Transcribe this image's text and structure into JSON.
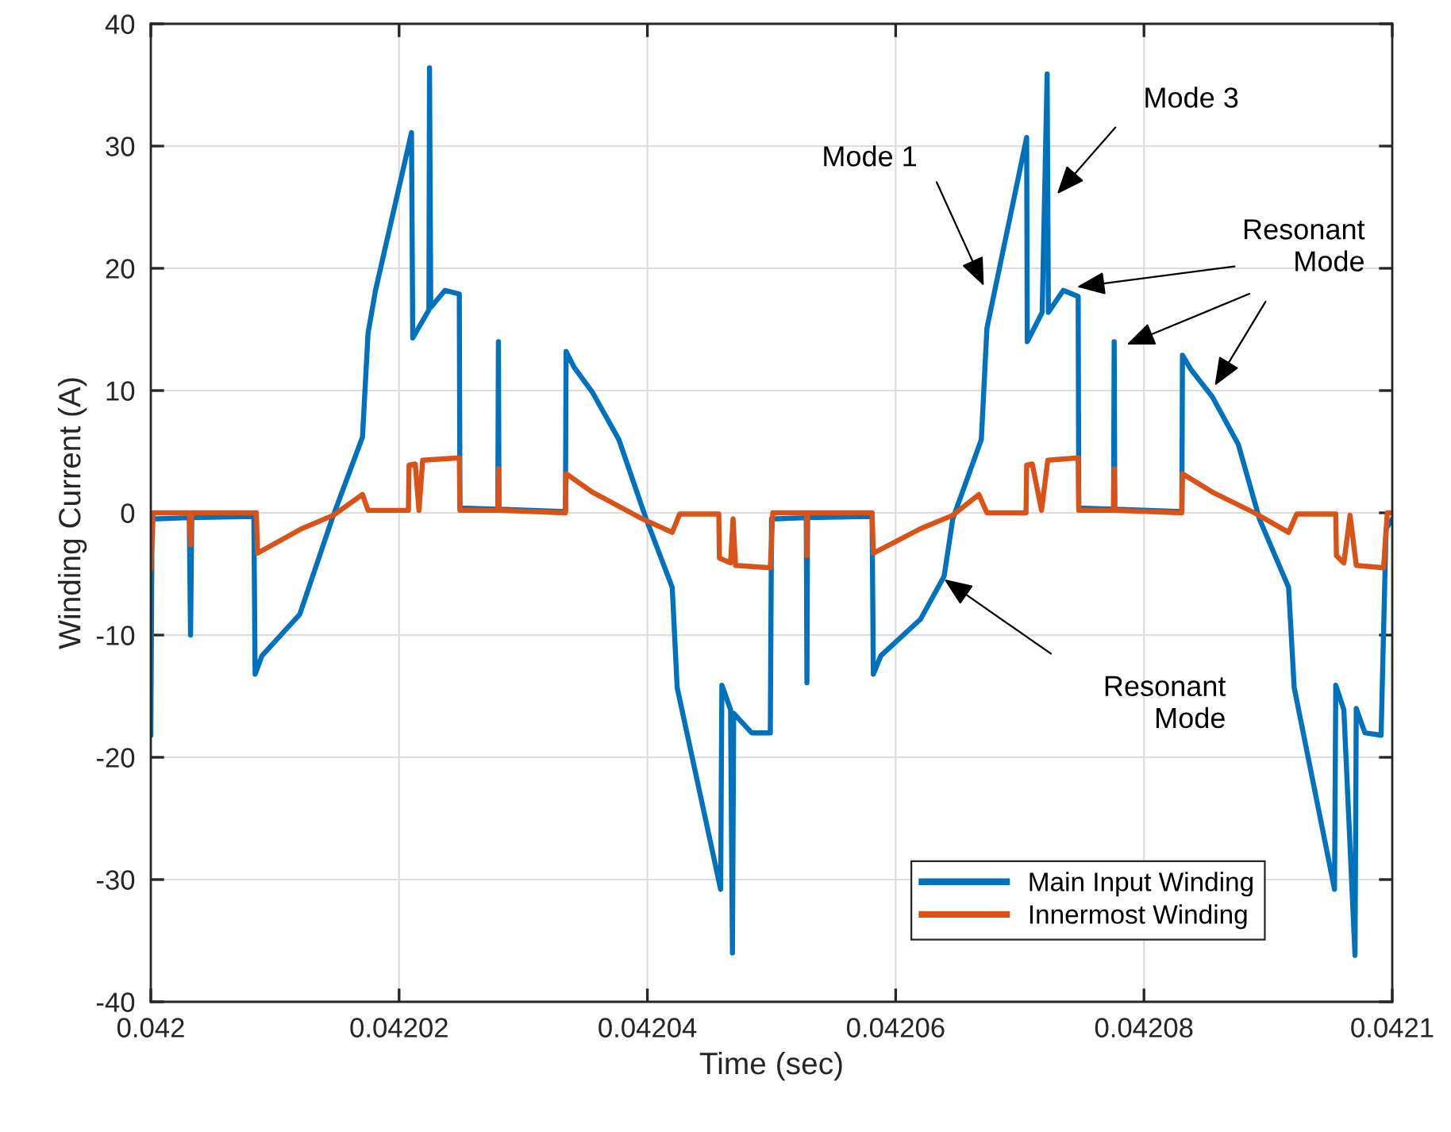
{
  "chart_data": {
    "type": "line",
    "xlabel": "Time (sec)",
    "ylabel": "Winding Current (A)",
    "xlim": [
      0.042,
      0.0421
    ],
    "xticks": [
      0.042,
      0.04202,
      0.04204,
      0.04206,
      0.04208,
      0.0421
    ],
    "ylim": [
      -40,
      40
    ],
    "yticks": [
      -40,
      -30,
      -20,
      -10,
      0,
      10,
      20,
      30,
      40
    ],
    "grid": true,
    "legend": "bottom right",
    "marker": "none",
    "line_style": "solid",
    "series": [
      {
        "name": "Main Input Winding",
        "color": "#0072bd",
        "x": [
          0.042,
          0.0420001,
          0.0420031,
          0.0420032,
          0.0420033,
          0.0420083,
          0.0420084,
          0.04200895,
          0.042012,
          0.0420146,
          0.04201705,
          0.0420175,
          0.0420181,
          0.042021,
          0.0420211,
          0.0420224,
          0.04202245,
          0.04202255,
          0.0420237,
          0.04202485,
          0.0420249,
          0.04202795,
          0.042028,
          0.04202805,
          0.0420334,
          0.04203345,
          0.0420341,
          0.04203555,
          0.0420377,
          0.0420399,
          0.042042,
          0.0420424,
          0.0420459,
          0.042046,
          0.0420467,
          0.04204685,
          0.04204695,
          0.0420484,
          0.0420499,
          0.04205,
          0.0420528,
          0.04205285,
          0.0420529,
          0.0420581,
          0.0420582,
          0.0420588,
          0.042062,
          0.0420639,
          0.0420646,
          0.0420669,
          0.04206735,
          0.04207055,
          0.0420706,
          0.0420718,
          0.0420722,
          0.0420723,
          0.0420735,
          0.0420747,
          0.04207475,
          0.04207755,
          0.0420776,
          0.04207765,
          0.04208305,
          0.0420831,
          0.0420838,
          0.0420855,
          0.0420876,
          0.0420893,
          0.04209165,
          0.0420921,
          0.04209535,
          0.04209545,
          0.0420961,
          0.042097,
          0.0420971,
          0.0420978,
          0.0420991,
          0.0420995,
          0.0421
        ],
        "values": [
          -18.2,
          -0.5,
          -0.4,
          -10,
          -0.4,
          -0.3,
          -13.2,
          -11.7,
          -8.3,
          -0.5,
          6.2,
          14.7,
          18.2,
          31.1,
          14.3,
          16.6,
          36.4,
          16.8,
          18.2,
          17.9,
          0.4,
          0.3,
          14.0,
          0.3,
          0.1,
          13.2,
          11.9,
          9.9,
          6.0,
          -0.5,
          -6.1,
          -14.3,
          -30.8,
          -14.1,
          -16.1,
          -36.0,
          -16.4,
          -18.0,
          -18.0,
          -0.5,
          -0.4,
          -13.9,
          -0.4,
          -0.3,
          -13.2,
          -11.7,
          -8.7,
          -5.2,
          -0.5,
          6.0,
          15.1,
          30.7,
          14.0,
          16.4,
          35.9,
          16.4,
          18.2,
          17.7,
          0.4,
          0.3,
          14.0,
          0.3,
          0.1,
          12.9,
          11.7,
          9.5,
          5.6,
          -0.5,
          -6.1,
          -14.3,
          -30.8,
          -14.1,
          -16.1,
          -36.2,
          -16.0,
          -18.0,
          -18.2,
          -1.3,
          -0.5
        ]
      },
      {
        "name": "Innermost Winding",
        "color": "#d95319",
        "x": [
          0.042,
          0.0420002,
          0.0420031,
          0.0420032,
          0.0420033,
          0.0420085,
          0.0420086,
          0.04201215,
          0.0420147,
          0.04201705,
          0.0420175,
          0.04202075,
          0.0420208,
          0.0420213,
          0.0420216,
          0.0420219,
          0.04202485,
          0.0420249,
          0.04202795,
          0.042028,
          0.04202805,
          0.0420334,
          0.04203345,
          0.04203555,
          0.0420396,
          0.042042,
          0.0420426,
          0.04204575,
          0.0420458,
          0.0420467,
          0.0420469,
          0.0420471,
          0.0420499,
          0.0420501,
          0.0420528,
          0.04205285,
          0.0420529,
          0.0420581,
          0.0420582,
          0.042062,
          0.0420646,
          0.0420667,
          0.04206735,
          0.0420705,
          0.04207055,
          0.042071,
          0.04207175,
          0.04207225,
          0.0420747,
          0.04207475,
          0.04207755,
          0.0420776,
          0.04207765,
          0.04208305,
          0.0420831,
          0.0420855,
          0.0420889,
          0.04209165,
          0.0420923,
          0.04209545,
          0.0420955,
          0.0420961,
          0.0420966,
          0.0420971,
          0.0420993,
          0.0420996,
          0.0421
        ],
        "values": [
          -4.6,
          0.0,
          0.0,
          -2.6,
          0.0,
          0.0,
          -3.3,
          -1.3,
          -0.2,
          1.5,
          0.2,
          0.2,
          3.9,
          4.0,
          0.2,
          4.3,
          4.5,
          0.2,
          0.2,
          3.6,
          0.2,
          0.0,
          3.2,
          1.7,
          -0.5,
          -1.6,
          -0.1,
          -0.1,
          -3.7,
          -4.1,
          -0.5,
          -4.3,
          -4.5,
          0.0,
          0.0,
          -3.5,
          0.0,
          0.0,
          -3.3,
          -1.3,
          -0.2,
          1.5,
          0.0,
          0.0,
          3.9,
          4.0,
          0.2,
          4.3,
          4.5,
          0.2,
          0.2,
          3.6,
          0.2,
          0.0,
          3.2,
          1.7,
          0.0,
          -1.6,
          -0.1,
          -0.1,
          -3.5,
          -4.1,
          -0.2,
          -4.3,
          -4.5,
          0.0,
          0.0
        ]
      }
    ],
    "annotations": [
      "Mode 1",
      "Mode 3",
      "Resonant\nMode",
      "Resonant\nMode"
    ]
  }
}
